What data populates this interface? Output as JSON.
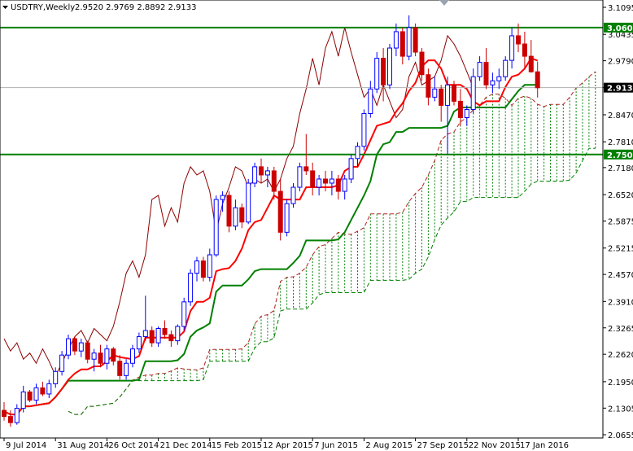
{
  "header": {
    "symbol": "USDTRY,Weekly",
    "ohlc": "2.9520 2.9769 2.8892 2.9133"
  },
  "colors": {
    "background": "#ffffff",
    "bull_candle": "#0000ff",
    "bear_candle": "#cc0000",
    "tenkan": "#ff0000",
    "kijun": "#008000",
    "chikou": "#8b0000",
    "span_a": "#b22222",
    "span_b": "#008000",
    "level_line": "#008000",
    "badge_green": "#008000",
    "badge_black": "#000000"
  },
  "chart_data": {
    "type": "candlestick",
    "indicator": "ichimoku",
    "ylim": [
      2.05,
      3.12
    ],
    "y_ticks": [
      "3.1095",
      "3.0435",
      "2.9790",
      "2.9133",
      "2.8470",
      "2.7810",
      "2.7180",
      "2.6520",
      "2.5875",
      "2.5215",
      "2.4570",
      "2.3910",
      "2.3265",
      "2.2620",
      "2.1950",
      "2.1305",
      "2.0655"
    ],
    "x_labels": [
      "9 Jul 2014",
      "31 Aug 2014",
      "26 Oct 2014",
      "21 Dec 2014",
      "15 Feb 2015",
      "12 Apr 2015",
      "7 Jun 2015",
      "2 Aug 2015",
      "27 Sep 2015",
      "22 Nov 2015",
      "17 Jan 2016"
    ],
    "x_label_bars": [
      0,
      8,
      16,
      24,
      32,
      40,
      48,
      56,
      64,
      72,
      80
    ],
    "bar_count": 84,
    "cloud_shift": 10,
    "horizontal_levels": [
      {
        "value": 3.06,
        "label": "3.0600",
        "color": "#008000"
      },
      {
        "value": 2.75,
        "label": "2.7500",
        "color": "#008000"
      }
    ],
    "current_price": {
      "value": 2.9133,
      "label": "2.9133"
    },
    "candles": [
      [
        2.125,
        2.145,
        2.1,
        2.11
      ],
      [
        2.11,
        2.125,
        2.085,
        2.095
      ],
      [
        2.095,
        2.14,
        2.09,
        2.13
      ],
      [
        2.13,
        2.185,
        2.12,
        2.17
      ],
      [
        2.17,
        2.175,
        2.145,
        2.15
      ],
      [
        2.15,
        2.19,
        2.14,
        2.18
      ],
      [
        2.18,
        2.195,
        2.16,
        2.165
      ],
      [
        2.165,
        2.2,
        2.155,
        2.19
      ],
      [
        2.19,
        2.23,
        2.18,
        2.22
      ],
      [
        2.22,
        2.27,
        2.21,
        2.26
      ],
      [
        2.26,
        2.31,
        2.25,
        2.3
      ],
      [
        2.3,
        2.305,
        2.26,
        2.27
      ],
      [
        2.27,
        2.3,
        2.255,
        2.29
      ],
      [
        2.29,
        2.295,
        2.24,
        2.25
      ],
      [
        2.25,
        2.275,
        2.22,
        2.265
      ],
      [
        2.265,
        2.285,
        2.23,
        2.24
      ],
      [
        2.24,
        2.285,
        2.225,
        2.275
      ],
      [
        2.275,
        2.28,
        2.235,
        2.245
      ],
      [
        2.245,
        2.26,
        2.2,
        2.21
      ],
      [
        2.21,
        2.25,
        2.2,
        2.24
      ],
      [
        2.24,
        2.285,
        2.23,
        2.275
      ],
      [
        2.275,
        2.315,
        2.265,
        2.305
      ],
      [
        2.305,
        2.405,
        2.295,
        2.32
      ],
      [
        2.32,
        2.33,
        2.28,
        2.29
      ],
      [
        2.29,
        2.33,
        2.28,
        2.325
      ],
      [
        2.325,
        2.345,
        2.3,
        2.31
      ],
      [
        2.31,
        2.32,
        2.28,
        2.295
      ],
      [
        2.295,
        2.335,
        2.285,
        2.33
      ],
      [
        2.33,
        2.4,
        2.32,
        2.39
      ],
      [
        2.39,
        2.47,
        2.38,
        2.46
      ],
      [
        2.46,
        2.5,
        2.44,
        2.49
      ],
      [
        2.49,
        2.5,
        2.44,
        2.45
      ],
      [
        2.45,
        2.52,
        2.44,
        2.505
      ],
      [
        2.505,
        2.65,
        2.5,
        2.64
      ],
      [
        2.64,
        2.66,
        2.61,
        2.65
      ],
      [
        2.65,
        2.66,
        2.56,
        2.575
      ],
      [
        2.575,
        2.64,
        2.565,
        2.62
      ],
      [
        2.62,
        2.63,
        2.57,
        2.585
      ],
      [
        2.585,
        2.69,
        2.58,
        2.68
      ],
      [
        2.68,
        2.73,
        2.67,
        2.72
      ],
      [
        2.72,
        2.74,
        2.68,
        2.7
      ],
      [
        2.7,
        2.72,
        2.67,
        2.71
      ],
      [
        2.71,
        2.72,
        2.64,
        2.66
      ],
      [
        2.66,
        2.69,
        2.54,
        2.56
      ],
      [
        2.56,
        2.64,
        2.55,
        2.63
      ],
      [
        2.63,
        2.68,
        2.62,
        2.67
      ],
      [
        2.67,
        2.73,
        2.66,
        2.72
      ],
      [
        2.72,
        2.8,
        2.7,
        2.71
      ],
      [
        2.71,
        2.73,
        2.65,
        2.67
      ],
      [
        2.67,
        2.7,
        2.65,
        2.69
      ],
      [
        2.69,
        2.71,
        2.66,
        2.68
      ],
      [
        2.68,
        2.71,
        2.65,
        2.69
      ],
      [
        2.69,
        2.7,
        2.64,
        2.66
      ],
      [
        2.66,
        2.7,
        2.64,
        2.69
      ],
      [
        2.69,
        2.75,
        2.68,
        2.74
      ],
      [
        2.74,
        2.78,
        2.72,
        2.77
      ],
      [
        2.77,
        2.86,
        2.76,
        2.85
      ],
      [
        2.85,
        2.93,
        2.84,
        2.91
      ],
      [
        2.91,
        3.0,
        2.9,
        2.985
      ],
      [
        2.985,
        3.01,
        2.88,
        2.92
      ],
      [
        2.92,
        3.02,
        2.91,
        3.01
      ],
      [
        3.01,
        3.07,
        2.99,
        3.05
      ],
      [
        3.05,
        3.06,
        2.97,
        2.99
      ],
      [
        2.99,
        3.09,
        2.98,
        3.06
      ],
      [
        3.06,
        3.07,
        2.99,
        3.0
      ],
      [
        3.0,
        3.01,
        2.93,
        2.945
      ],
      [
        2.945,
        2.96,
        2.87,
        2.89
      ],
      [
        2.89,
        2.94,
        2.88,
        2.91
      ],
      [
        2.91,
        2.92,
        2.83,
        2.87
      ],
      [
        2.87,
        2.94,
        2.75,
        2.92
      ],
      [
        2.92,
        2.93,
        2.87,
        2.88
      ],
      [
        2.88,
        2.91,
        2.82,
        2.84
      ],
      [
        2.84,
        2.87,
        2.82,
        2.86
      ],
      [
        2.86,
        2.96,
        2.85,
        2.94
      ],
      [
        2.94,
        2.99,
        2.93,
        2.975
      ],
      [
        2.975,
        3.01,
        2.91,
        2.92
      ],
      [
        2.92,
        2.95,
        2.9,
        2.93
      ],
      [
        2.93,
        2.96,
        2.91,
        2.94
      ],
      [
        2.94,
        2.99,
        2.93,
        2.98
      ],
      [
        2.98,
        3.06,
        2.96,
        3.04
      ],
      [
        3.04,
        3.07,
        3.0,
        3.02
      ],
      [
        3.02,
        3.05,
        2.96,
        2.99
      ],
      [
        2.99,
        3.03,
        2.95,
        2.952
      ],
      [
        2.952,
        2.977,
        2.889,
        2.913
      ]
    ]
  }
}
